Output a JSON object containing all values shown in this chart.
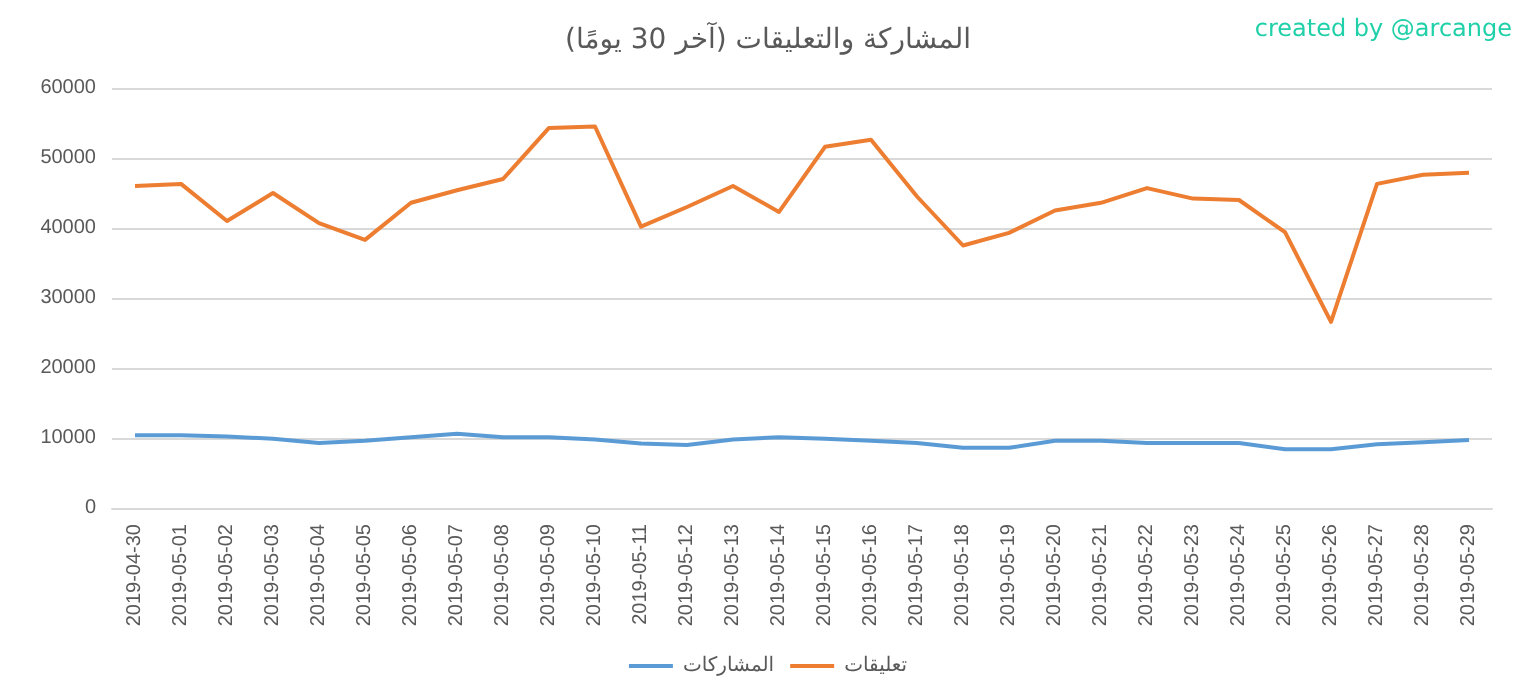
{
  "chart_data": {
    "type": "line",
    "title": "المشاركة والتعليقات (آخر 30 يومًا)",
    "annotations": [
      "created by @arcange"
    ],
    "categories": [
      "2019-04-30",
      "2019-05-01",
      "2019-05-02",
      "2019-05-03",
      "2019-05-04",
      "2019-05-05",
      "2019-05-06",
      "2019-05-07",
      "2019-05-08",
      "2019-05-09",
      "2019-05-10",
      "2019-05-11",
      "2019-05-12",
      "2019-05-13",
      "2019-05-14",
      "2019-05-15",
      "2019-05-16",
      "2019-05-17",
      "2019-05-18",
      "2019-05-19",
      "2019-05-20",
      "2019-05-21",
      "2019-05-22",
      "2019-05-23",
      "2019-05-24",
      "2019-05-25",
      "2019-05-26",
      "2019-05-27",
      "2019-05-28",
      "2019-05-29"
    ],
    "series": [
      {
        "name": "المشاركات",
        "color": "#5b9bd5",
        "values": [
          10400,
          10400,
          10200,
          9900,
          9300,
          9600,
          10100,
          10600,
          10100,
          10100,
          9800,
          9200,
          9000,
          9800,
          10100,
          9900,
          9600,
          9300,
          8600,
          8600,
          9600,
          9600,
          9300,
          9300,
          9300,
          8400,
          8400,
          9100,
          9400,
          9700
        ]
      },
      {
        "name": "تعليقات",
        "color": "#ed7d31",
        "values": [
          46000,
          46300,
          41000,
          45000,
          40700,
          38300,
          43600,
          45400,
          47000,
          54300,
          54500,
          40200,
          43000,
          46000,
          42300,
          51600,
          52600,
          44500,
          37500,
          39300,
          42500,
          43600,
          45700,
          44200,
          44000,
          39400,
          26600,
          46300,
          47600,
          47900
        ]
      }
    ],
    "ylim": [
      0,
      60000
    ],
    "yticks": [
      0,
      10000,
      20000,
      30000,
      40000,
      50000,
      60000
    ],
    "grid": "y",
    "legend": "bottom",
    "marker": "none",
    "line_style": "solid"
  }
}
